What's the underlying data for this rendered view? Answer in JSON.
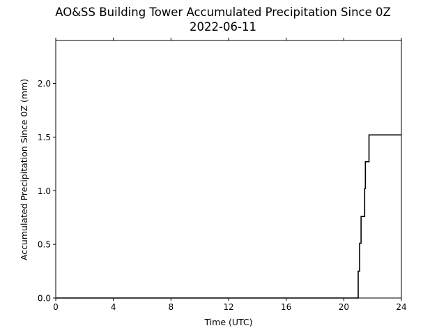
{
  "chart_data": {
    "type": "line",
    "title": "AO&SS Building Tower Accumulated Precipitation Since 0Z",
    "subtitle": "2022-06-11",
    "xlabel": "Time (UTC)",
    "ylabel": "Accumulated Precipitation Since 0Z (mm)",
    "xlim": [
      0,
      24
    ],
    "ylim": [
      0,
      2.4
    ],
    "xticks": [
      0,
      4,
      8,
      12,
      16,
      20,
      24
    ],
    "xtick_labels": [
      "0",
      "4",
      "8",
      "12",
      "16",
      "20",
      "24"
    ],
    "yticks": [
      0.0,
      0.5,
      1.0,
      1.5,
      2.0
    ],
    "ytick_labels": [
      "0.0",
      "0.5",
      "1.0",
      "1.5",
      "2.0"
    ],
    "grid": false,
    "line_color": "#000000",
    "series": [
      {
        "x": [
          0,
          21.0,
          21.0,
          21.1,
          21.1,
          21.2,
          21.2,
          21.45,
          21.45,
          21.5,
          21.5,
          21.55,
          21.55,
          21.75,
          21.75,
          24
        ],
        "y": [
          0,
          0,
          0.25,
          0.25,
          0.51,
          0.51,
          0.76,
          0.76,
          1.02,
          1.02,
          1.27,
          1.27,
          1.27,
          1.27,
          1.52,
          1.52
        ]
      }
    ]
  }
}
